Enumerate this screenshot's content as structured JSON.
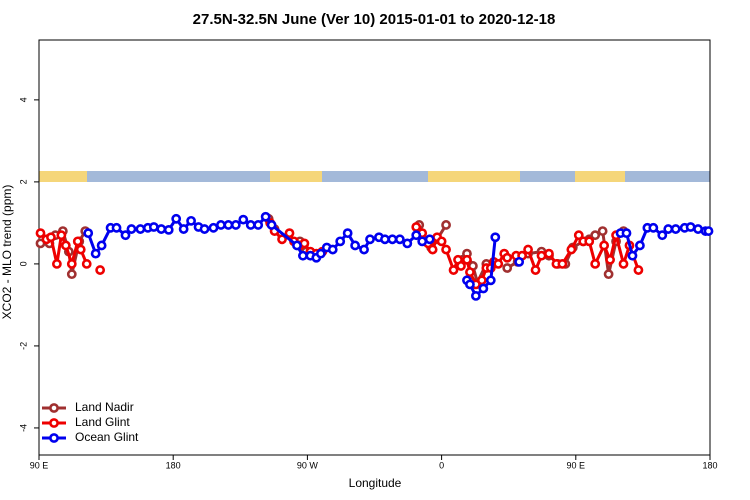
{
  "chart_data": {
    "type": "line",
    "title": "27.5N-32.5N June (Ver 10)   2015-01-01 to 2020-12-18",
    "x_label": "Longitude",
    "y_label": "XCO2 - MLO trend (ppm)",
    "xlim": [
      90,
      540
    ],
    "ylim": [
      -4.66,
      5.46
    ],
    "xticks": [
      {
        "value": 90,
        "label": "90 E"
      },
      180,
      {
        "value": 270,
        "label": "90 W"
      },
      {
        "value": 360,
        "label": "0"
      },
      {
        "value": 450,
        "label": "90 E"
      },
      {
        "value": 540,
        "label": "180"
      }
    ],
    "yticks": [
      -4,
      -2,
      0,
      2,
      4
    ],
    "legend": "bottom-left",
    "series": [
      {
        "name": "Land Nadir",
        "color": "#a03030",
        "x": [
          91,
          97,
          101,
          106,
          110,
          112,
          117,
          121,
          null,
          244,
          248,
          null,
          265,
          269,
          null,
          345,
          349,
          353,
          357,
          363,
          null,
          374,
          377,
          381,
          384,
          390,
          null,
          404,
          411,
          418,
          427,
          432,
          438,
          443,
          448,
          455,
          459,
          463,
          468,
          472,
          477,
          482
        ],
        "values": [
          0.5,
          0.5,
          0.7,
          0.8,
          0.3,
          -0.25,
          0.55,
          0.8,
          null,
          1.1,
          0.85,
          null,
          0.55,
          0.3,
          null,
          0.95,
          0.55,
          0.4,
          0.6,
          0.95,
          null,
          0.1,
          0.25,
          -0.05,
          -0.45,
          0,
          null,
          -0.1,
          0.05,
          0.25,
          0.3,
          0.2,
          0,
          0,
          0.4,
          0.55,
          0.6,
          0.7,
          0.8,
          -0.25,
          0.55,
          0.8
        ]
      },
      {
        "name": "Land Glint",
        "color": "#ee0000",
        "x": [
          91,
          95,
          98,
          102,
          105,
          108,
          112,
          116,
          118,
          122,
          null,
          131,
          null,
          245,
          248,
          253,
          258,
          261,
          265,
          268,
          272,
          276,
          280,
          null,
          343,
          347,
          351,
          354,
          357,
          360,
          363,
          368,
          371,
          373,
          377,
          379,
          383,
          387,
          390,
          393,
          395,
          398,
          402,
          404,
          410,
          414,
          418,
          423,
          427,
          432,
          437,
          441,
          447,
          452,
          455,
          459,
          463,
          469,
          473,
          477,
          482,
          486,
          492
        ],
        "values": [
          0.75,
          0.6,
          0.65,
          0,
          0.7,
          0.45,
          0,
          0.55,
          0.35,
          0,
          null,
          -0.15,
          null,
          1.0,
          0.8,
          0.6,
          0.75,
          0.55,
          0.45,
          0.5,
          0.3,
          0.25,
          0.3,
          null,
          0.9,
          0.75,
          0.5,
          0.35,
          0.65,
          0.55,
          0.35,
          -0.15,
          0.1,
          -0.05,
          0.1,
          -0.2,
          -0.5,
          -0.4,
          -0.1,
          -0.1,
          0.05,
          0,
          0.25,
          0.15,
          0.2,
          0.2,
          0.35,
          -0.15,
          0.2,
          0.25,
          0,
          0,
          0.35,
          0.7,
          0.55,
          0.55,
          0,
          0.45,
          0.1,
          0.7,
          0,
          0.45,
          -0.15
        ]
      },
      {
        "name": "Ocean Glint",
        "color": "#0000ee",
        "x": [
          123,
          128,
          132,
          138,
          142,
          148,
          152,
          158,
          163,
          167,
          172,
          177,
          182,
          187,
          192,
          197,
          201,
          207,
          212,
          217,
          222,
          227,
          232,
          237,
          242,
          246,
          263,
          267,
          272,
          276,
          279,
          283,
          287,
          292,
          297,
          302,
          308,
          312,
          318,
          322,
          327,
          332,
          337,
          343,
          347,
          352,
          null,
          377,
          379,
          383,
          388,
          393,
          396,
          null,
          412,
          null,
          480,
          484,
          488,
          493,
          498,
          502,
          508,
          512,
          517,
          523,
          527,
          532,
          537,
          539
        ],
        "values": [
          0.75,
          0.25,
          0.45,
          0.88,
          0.88,
          0.7,
          0.85,
          0.85,
          0.88,
          0.9,
          0.85,
          0.83,
          1.1,
          0.85,
          1.05,
          0.9,
          0.85,
          0.88,
          0.95,
          0.95,
          0.95,
          1.08,
          0.95,
          0.95,
          1.15,
          0.95,
          0.45,
          0.2,
          0.2,
          0.15,
          0.25,
          0.4,
          0.35,
          0.55,
          0.75,
          0.45,
          0.35,
          0.6,
          0.65,
          0.6,
          0.6,
          0.6,
          0.5,
          0.7,
          0.55,
          0.6,
          null,
          -0.4,
          -0.5,
          -0.78,
          -0.6,
          -0.4,
          0.65,
          null,
          0.05,
          null,
          0.75,
          0.75,
          0.2,
          0.45,
          0.88,
          0.88,
          0.7,
          0.85,
          0.85,
          0.88,
          0.9,
          0.85,
          0.8,
          0.8
        ]
      }
    ]
  }
}
